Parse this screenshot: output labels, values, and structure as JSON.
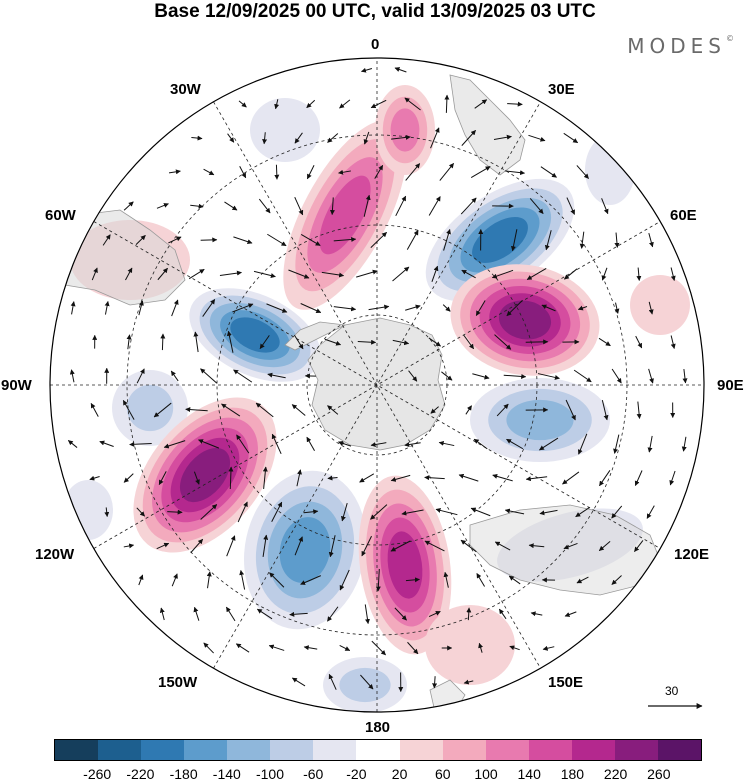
{
  "title": "Base 12/09/2025 00 UTC, valid 13/09/2025 03 UTC",
  "brand": "MODES",
  "brand_mark": "©",
  "longitude_labels": {
    "lon_0": "0",
    "lon_30e": "30E",
    "lon_60e": "60E",
    "lon_90e": "90E",
    "lon_120e": "120E",
    "lon_150e": "150E",
    "lon_180": "180",
    "lon_150w": "150W",
    "lon_120w": "120W",
    "lon_90w": "90W",
    "lon_60w": "60W",
    "lon_30w": "30W"
  },
  "vector_scale": {
    "label": "30"
  },
  "colorbar": {
    "colors": [
      "#153e5c",
      "#1d5f8f",
      "#2f79b2",
      "#5d9ccc",
      "#8fb7db",
      "#bdcde6",
      "#e5e6f1",
      "#ffffff",
      "#f6d3d6",
      "#f3aabd",
      "#e87aaf",
      "#d54d9f",
      "#b4288e",
      "#881d7d",
      "#5b1467"
    ],
    "ticks": [
      "-260",
      "-220",
      "-180",
      "-140",
      "-100",
      "-60",
      "-20",
      "20",
      "60",
      "100",
      "140",
      "180",
      "220",
      "260"
    ]
  },
  "map_colors": {
    "land": "#d8d8d8",
    "antarctica": "#e6e6e6",
    "coast": "#9a9a9a",
    "vector": "#111111"
  }
}
